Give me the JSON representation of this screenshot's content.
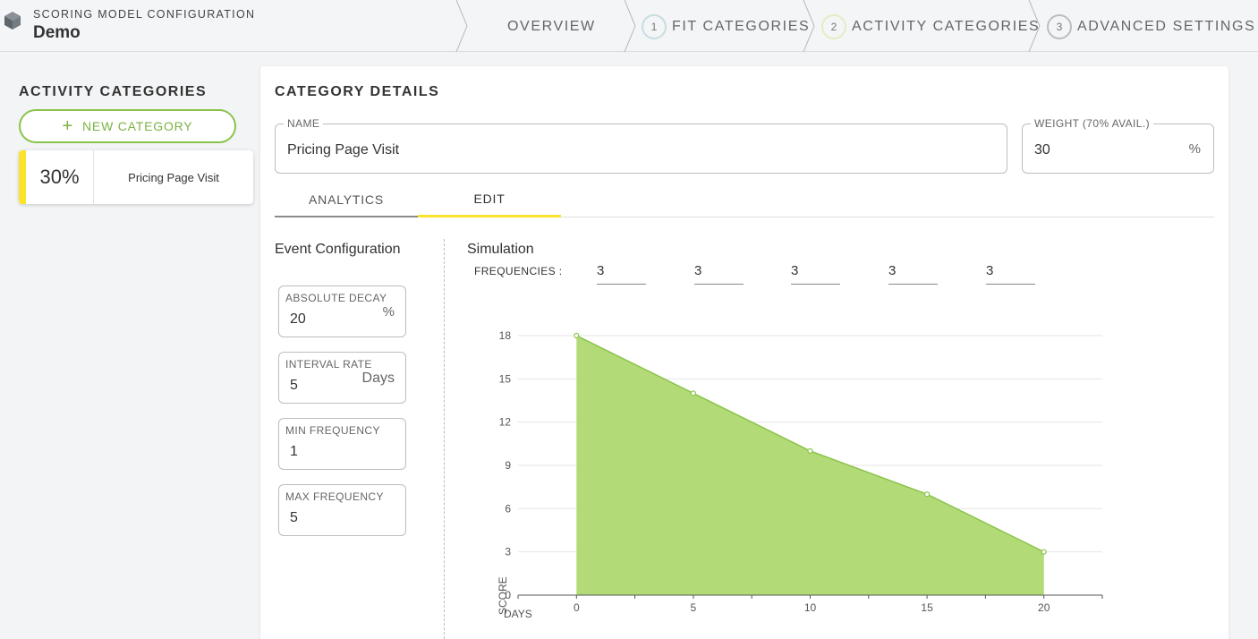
{
  "header": {
    "subtitle": "SCORING MODEL CONFIGURATION",
    "title": "Demo",
    "steps": [
      {
        "number": "",
        "label": "OVERVIEW"
      },
      {
        "number": "1",
        "label": "FIT CATEGORIES"
      },
      {
        "number": "2",
        "label": "ACTIVITY CATEGORIES"
      },
      {
        "number": "3",
        "label": "ADVANCED SETTINGS"
      }
    ]
  },
  "sidebar": {
    "title": "ACTIVITY CATEGORIES",
    "new_button": "NEW CATEGORY",
    "categories": [
      {
        "percent": "30%",
        "name": "Pricing Page Visit",
        "color": "#fbe22d"
      }
    ]
  },
  "details": {
    "title": "CATEGORY DETAILS",
    "name_label": "NAME",
    "name_value": "Pricing Page Visit",
    "weight_label": "WEIGHT (70% AVAIL.)",
    "weight_value": "30",
    "weight_suffix": "%",
    "tabs": [
      "ANALYTICS",
      "EDIT"
    ],
    "active_tab": "EDIT"
  },
  "event_config": {
    "title": "Event Configuration",
    "absolute_decay": {
      "label": "ABSOLUTE DECAY",
      "value": "20",
      "suffix": "%"
    },
    "interval_rate": {
      "label": "INTERVAL RATE",
      "value": "5",
      "suffix": "Days"
    },
    "min_frequency": {
      "label": "MIN FREQUENCY",
      "value": "1"
    },
    "max_frequency": {
      "label": "MAX FREQUENCY",
      "value": "5"
    }
  },
  "simulation": {
    "title": "Simulation",
    "frequencies_label": "FREQUENCIES :",
    "frequencies": [
      "3",
      "3",
      "3",
      "3",
      "3"
    ]
  },
  "chart_data": {
    "type": "area",
    "x": [
      0,
      5,
      10,
      15,
      20
    ],
    "y": [
      18,
      14,
      10,
      7,
      3
    ],
    "xlabel": "DAYS",
    "ylabel": "SCORE",
    "xticks": [
      0,
      5,
      10,
      15,
      20
    ],
    "yticks": [
      0,
      3,
      6,
      9,
      12,
      15,
      18
    ],
    "xlim": [
      -2.5,
      22.5
    ],
    "ylim": [
      0,
      18
    ],
    "grid": true,
    "fill_color": "#b2db78",
    "line_color": "#8bc34a"
  },
  "colors": {
    "accent": "#8bc34a",
    "highlight": "#fbe22d"
  }
}
